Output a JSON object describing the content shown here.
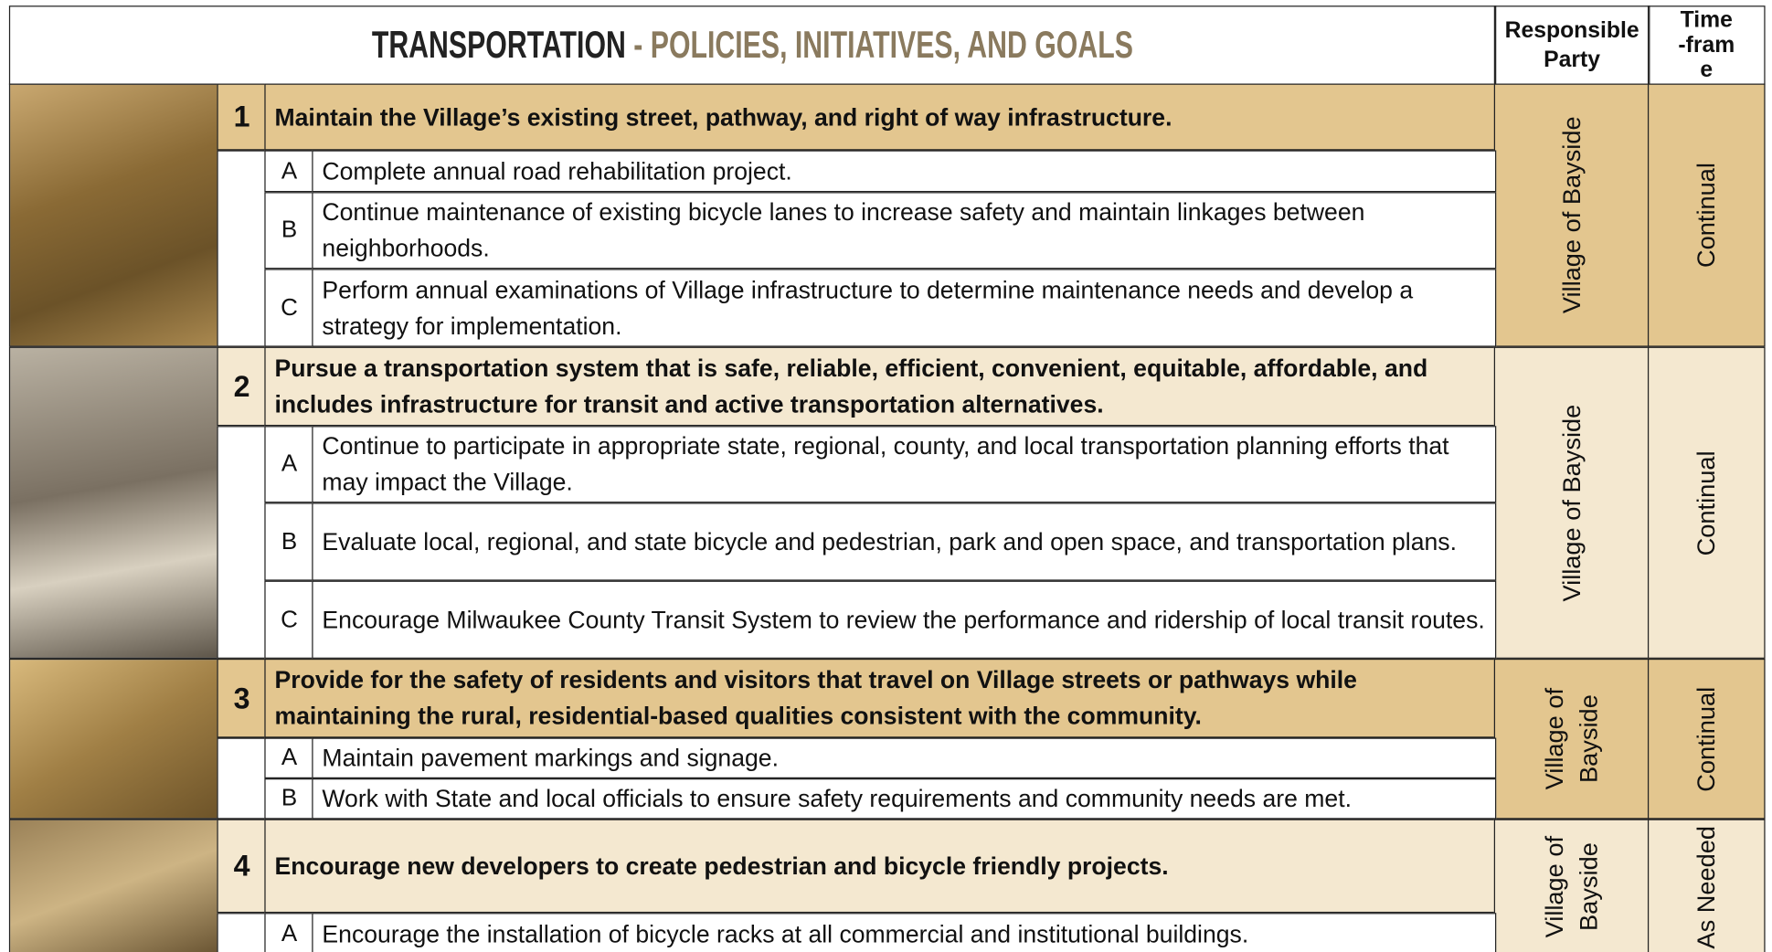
{
  "header": {
    "title": "TRANSPORTATION",
    "subtitle": "- POLICIES, INITIATIVES, AND GOALS",
    "responsible_party": "Responsible Party",
    "timeframe": "Time-frame"
  },
  "goals": [
    {
      "number": "1",
      "text": "Maintain the Village’s existing street, pathway, and right of way infrastructure.",
      "responsible_party": "Village of Bayside",
      "timeframe": "Continual",
      "items": [
        {
          "letter": "A",
          "text": "Complete annual road rehabilitation project."
        },
        {
          "letter": "B",
          "text": "Continue maintenance of existing bicycle lanes to increase safety and maintain linkages between neighborhoods."
        },
        {
          "letter": "C",
          "text": "Perform annual examinations of Village infrastructure to determine maintenance needs and develop a strategy for implementation."
        }
      ]
    },
    {
      "number": "2",
      "text": "Pursue a transportation system that is safe, reliable, efficient, convenient, equitable, affordable, and includes infrastructure for transit and active transportation alternatives.",
      "responsible_party": "Village of Bayside",
      "timeframe": "Continual",
      "items": [
        {
          "letter": "A",
          "text": "Continue to participate in appropriate state, regional, county, and local transportation planning efforts that may impact the Village."
        },
        {
          "letter": "B",
          "text": "Evaluate local, regional, and state bicycle and pedestrian, park and open space, and transportation plans."
        },
        {
          "letter": "C",
          "text": "Encourage Milwaukee County Transit System to review the performance and ridership of local transit routes."
        }
      ]
    },
    {
      "number": "3",
      "text": "Provide for the safety of residents and visitors that travel on Village streets or pathways while maintaining the rural, residential-based qualities consistent with the community.",
      "responsible_party": "Village of Bayside",
      "timeframe": "Continual",
      "items": [
        {
          "letter": "A",
          "text": "Maintain pavement markings and signage."
        },
        {
          "letter": "B",
          "text": "Work with State and local officials to ensure safety requirements and community needs are met."
        }
      ]
    },
    {
      "number": "4",
      "text": "Encourage new developers to create pedestrian and bicycle friendly projects.",
      "responsible_party": "Village of Bayside",
      "timeframe": "As Needed",
      "items": [
        {
          "letter": "A",
          "text": "Encourage the installation of bicycle racks at all commercial and institutional buildings."
        }
      ]
    }
  ]
}
